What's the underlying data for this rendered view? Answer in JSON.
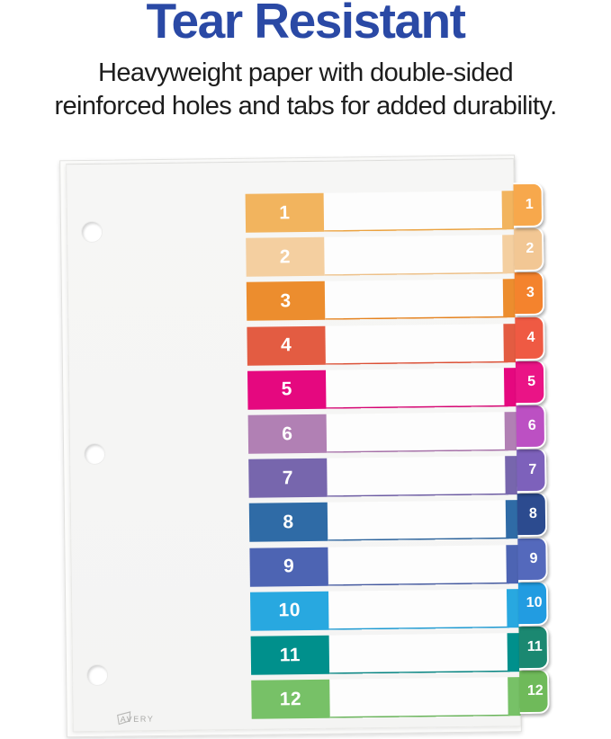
{
  "header": {
    "title": "Tear Resistant",
    "subtitle_lines": [
      "Heavyweight paper with double-sided",
      "reinforced holes and tabs for added durability."
    ],
    "title_color": "#2a49a5",
    "text_color": "#1d1d1d"
  },
  "product": {
    "brand": "AVERY",
    "hole_count": 3,
    "tabs": [
      {
        "label": "1",
        "block": "#F2B45E",
        "tab": "#F7A84C",
        "line": "#EBA23F"
      },
      {
        "label": "2",
        "block": "#F4CFA0",
        "tab": "#F2C794",
        "line": "#EDC088"
      },
      {
        "label": "3",
        "block": "#EC8D2E",
        "tab": "#F4832D",
        "line": "#E5821E"
      },
      {
        "label": "4",
        "block": "#E35C42",
        "tab": "#EF5A43",
        "line": "#DB5036"
      },
      {
        "label": "5",
        "block": "#E5087F",
        "tab": "#EA1486",
        "line": "#D50472"
      },
      {
        "label": "6",
        "block": "#B180B4",
        "tab": "#BC50C3",
        "line": "#A671A8"
      },
      {
        "label": "7",
        "block": "#7766AD",
        "tab": "#7D61BB",
        "line": "#6C5BA2"
      },
      {
        "label": "8",
        "block": "#2F6BA6",
        "tab": "#2C4B8F",
        "line": "#2A629B"
      },
      {
        "label": "9",
        "block": "#4D64B3",
        "tab": "#5469BC",
        "line": "#44599F"
      },
      {
        "label": "10",
        "block": "#28A8E0",
        "tab": "#229CE1",
        "line": "#1D9AD2"
      },
      {
        "label": "11",
        "block": "#00908C",
        "tab": "#1B8871",
        "line": "#038380"
      },
      {
        "label": "12",
        "block": "#77C167",
        "tab": "#6FBA5A",
        "line": "#69B45A"
      }
    ]
  }
}
